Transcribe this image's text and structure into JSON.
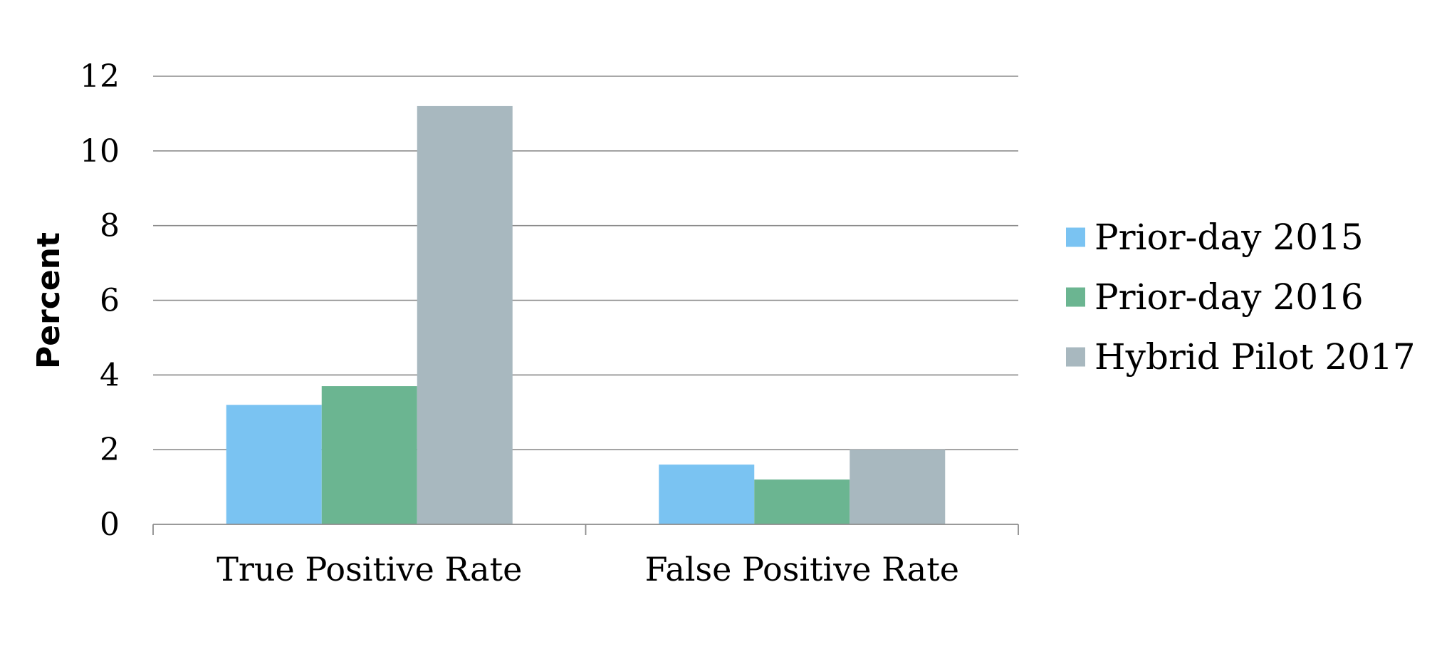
{
  "chart_data": {
    "type": "bar",
    "title": "",
    "xlabel": "",
    "ylabel": "Percent",
    "categories": [
      "True Positive Rate",
      "False Positive Rate"
    ],
    "series": [
      {
        "name": "Prior-day 2015",
        "values": [
          3.2,
          1.6
        ],
        "color": "#7ac3f2"
      },
      {
        "name": "Prior-day 2016",
        "values": [
          3.7,
          1.2
        ],
        "color": "#6bb591"
      },
      {
        "name": "Hybrid Pilot 2017",
        "values": [
          11.2,
          2.0
        ],
        "color": "#a8b8bf"
      }
    ],
    "ylim": [
      0,
      12
    ],
    "yticks": [
      0,
      2,
      4,
      6,
      8,
      10,
      12
    ],
    "grid": true,
    "legend_position": "right"
  }
}
